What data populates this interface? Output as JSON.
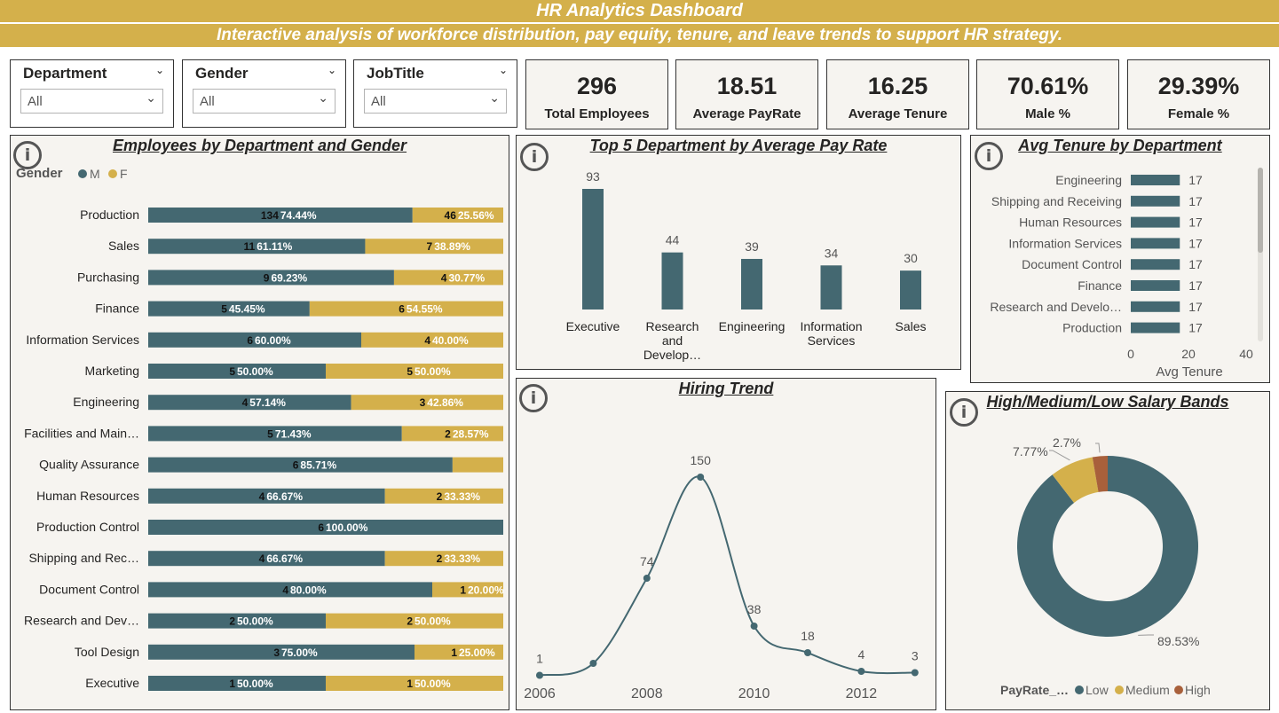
{
  "header": {
    "title": "HR Analytics Dashboard",
    "subtitle": "Interactive analysis of workforce distribution, pay equity, tenure, and leave trends to support HR strategy."
  },
  "slicers": [
    {
      "label": "Department",
      "value": "All"
    },
    {
      "label": "Gender",
      "value": "All"
    },
    {
      "label": "JobTitle",
      "value": "All"
    }
  ],
  "kpis": [
    {
      "value": "296",
      "label": "Total Employees"
    },
    {
      "value": "18.51",
      "label": "Average PayRate"
    },
    {
      "value": "16.25",
      "label": "Average Tenure"
    },
    {
      "value": "70.61%",
      "label": "Male %"
    },
    {
      "value": "29.39%",
      "label": "Female %"
    }
  ],
  "icons": {
    "info": "info-icon",
    "chevron": "chevron-down-icon"
  },
  "colors": {
    "male": "#446871",
    "female": "#d4b04b",
    "high": "#a8603b",
    "banner": "#d4b04b"
  },
  "chart_data": [
    {
      "type": "bar",
      "orientation": "horizontal-stacked-100",
      "title": "Employees by Department and Gender",
      "legend": {
        "title": "Gender",
        "items": [
          "M",
          "F"
        ],
        "position": "top-left"
      },
      "categories": [
        "Production",
        "Sales",
        "Purchasing",
        "Finance",
        "Information Services",
        "Marketing",
        "Engineering",
        "Facilities and Main…",
        "Quality Assurance",
        "Human Resources",
        "Production Control",
        "Shipping and Rec…",
        "Document Control",
        "Research and Dev…",
        "Tool Design",
        "Executive"
      ],
      "series": [
        {
          "name": "M",
          "values": [
            134,
            11,
            9,
            5,
            6,
            5,
            4,
            5,
            6,
            4,
            6,
            4,
            4,
            2,
            3,
            1
          ],
          "labels": [
            "74.44%",
            "61.11%",
            "69.23%",
            "45.45%",
            "60.00%",
            "50.00%",
            "57.14%",
            "71.43%",
            "85.71%",
            "66.67%",
            "100.00%",
            "66.67%",
            "80.00%",
            "50.00%",
            "75.00%",
            "50.00%"
          ]
        },
        {
          "name": "F",
          "values": [
            46,
            7,
            4,
            6,
            4,
            5,
            3,
            2,
            1,
            2,
            0,
            2,
            1,
            2,
            1,
            1
          ],
          "counts": [
            "46",
            "7",
            "4",
            "6",
            "4",
            "5",
            "3",
            "2",
            "",
            "2",
            "",
            "2",
            "1",
            "2",
            "1",
            "1"
          ],
          "labels": [
            "25.56%",
            "38.89%",
            "30.77%",
            "54.55%",
            "40.00%",
            "50.00%",
            "42.86%",
            "28.57%",
            "",
            "33.33%",
            "",
            "33.33%",
            "20.00%",
            "50.00%",
            "25.00%",
            "50.00%"
          ]
        }
      ]
    },
    {
      "type": "bar",
      "title": "Top 5 Department by Average Pay Rate",
      "categories": [
        "Executive",
        "Research and Develop…",
        "Engineering",
        "Information Services",
        "Sales"
      ],
      "category_lines": [
        [
          "Executive"
        ],
        [
          "Research",
          "and",
          "Develop…"
        ],
        [
          "Engineering"
        ],
        [
          "Information",
          "Services"
        ],
        [
          "Sales"
        ]
      ],
      "values": [
        93,
        44,
        39,
        34,
        30
      ],
      "ylim": [
        0,
        93
      ]
    },
    {
      "type": "bar",
      "orientation": "horizontal",
      "title": "Avg Tenure by Department",
      "categories": [
        "Engineering",
        "Shipping and Receiving",
        "Human Resources",
        "Information Services",
        "Document Control",
        "Finance",
        "Research and Develo…",
        "Production"
      ],
      "values": [
        17,
        17,
        17,
        17,
        17,
        17,
        17,
        17
      ],
      "xlim": [
        0,
        40
      ],
      "xticks": [
        "0",
        "20",
        "40"
      ],
      "xlabel": "Avg Tenure"
    },
    {
      "type": "line",
      "title": "Hiring Trend",
      "x": [
        2006,
        2007,
        2008,
        2009,
        2010,
        2011,
        2012,
        2013
      ],
      "values": [
        1,
        10,
        74,
        150,
        38,
        18,
        4,
        3
      ],
      "point_labels": [
        "1",
        "",
        "74",
        "150",
        "38",
        "18",
        "4",
        "3"
      ],
      "xticks": [
        "2006",
        "2008",
        "2010",
        "2012"
      ],
      "ylim": [
        0,
        150
      ]
    },
    {
      "type": "pie",
      "donut": true,
      "title": "High/Medium/Low Salary Bands",
      "legend": {
        "title": "PayRate_…",
        "position": "bottom"
      },
      "slices": [
        {
          "name": "Low",
          "value": 89.53,
          "label": "89.53%"
        },
        {
          "name": "Medium",
          "value": 7.77,
          "label": "7.77%"
        },
        {
          "name": "High",
          "value": 2.7,
          "label": "2.7%"
        }
      ]
    }
  ]
}
